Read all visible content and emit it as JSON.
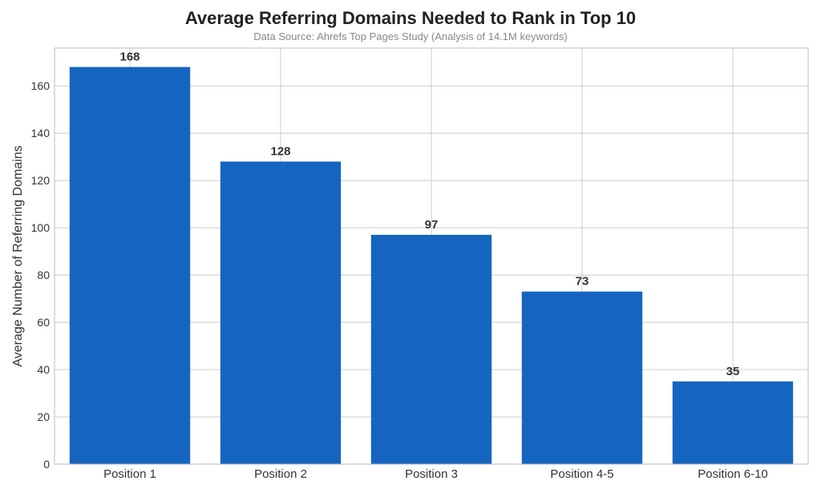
{
  "chart_data": {
    "type": "bar",
    "title": "Average Referring Domains Needed to Rank in Top 10",
    "subtitle": "Data Source: Ahrefs Top Pages Study (Analysis of 14.1M keywords)",
    "xlabel": "",
    "ylabel": "Average Number of Referring Domains",
    "categories": [
      "Position 1",
      "Position 2",
      "Position 3",
      "Position 4-5",
      "Position 6-10"
    ],
    "values": [
      168,
      128,
      97,
      73,
      35
    ],
    "data_labels": [
      "168",
      "128",
      "97",
      "73",
      "35"
    ],
    "ylim": [
      0,
      176
    ],
    "yticks": [
      0,
      20,
      40,
      60,
      80,
      100,
      120,
      140,
      160
    ],
    "ytick_labels": [
      "0",
      "20",
      "40",
      "60",
      "80",
      "100",
      "120",
      "140",
      "160"
    ],
    "grid": true,
    "bar_color": "#1565c0",
    "grid_color": "#cccccc"
  }
}
